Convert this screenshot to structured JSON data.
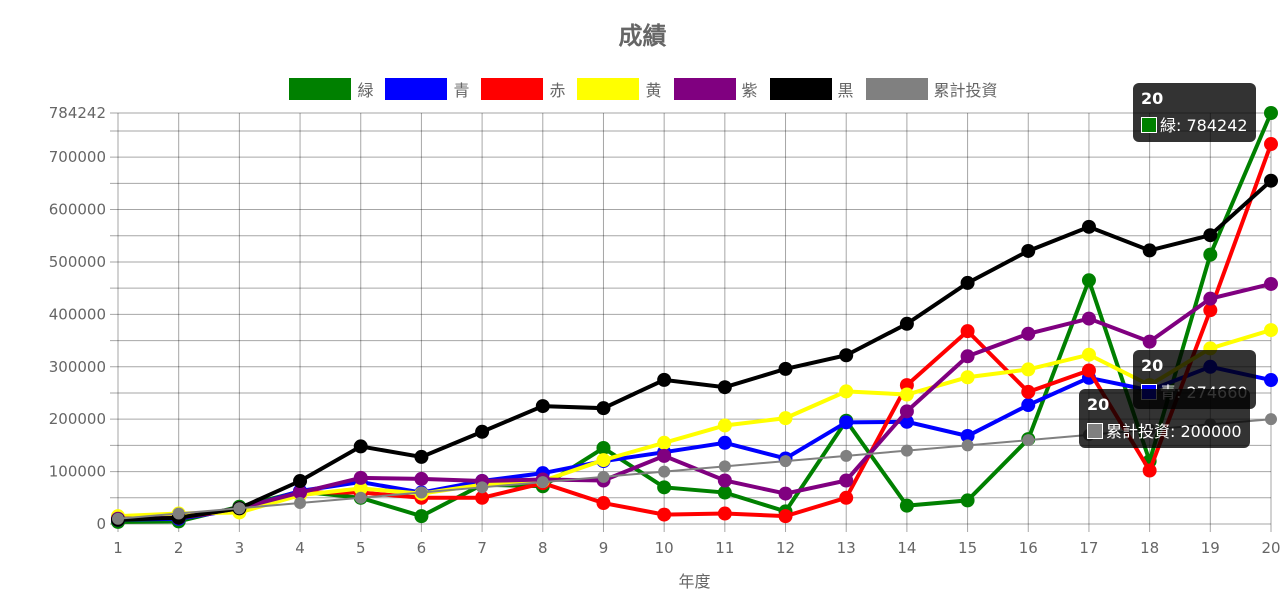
{
  "chart_data": {
    "type": "line",
    "title": "成績",
    "xlabel": "年度",
    "ylabel": "",
    "x": [
      1,
      2,
      3,
      4,
      5,
      6,
      7,
      8,
      9,
      10,
      11,
      12,
      13,
      14,
      15,
      16,
      17,
      18,
      19,
      20
    ],
    "ylim": [
      0,
      784242
    ],
    "yticks": [
      "0",
      "100000",
      "200000",
      "300000",
      "400000",
      "500000",
      "600000",
      "700000",
      "784242"
    ],
    "grid": true,
    "legend_position": "top",
    "series": [
      {
        "name": "緑",
        "color": "#008000",
        "values": [
          4000,
          5000,
          33000,
          62000,
          50000,
          15000,
          75000,
          72000,
          145000,
          70000,
          60000,
          24000,
          197000,
          35000,
          45000,
          162000,
          465000,
          120000,
          514000,
          784242
        ]
      },
      {
        "name": "青",
        "color": "#0000ff",
        "values": [
          8000,
          10000,
          28000,
          63000,
          80000,
          60000,
          82000,
          97000,
          120000,
          137000,
          155000,
          125000,
          194000,
          195000,
          168000,
          227000,
          279000,
          255000,
          300000,
          274660
        ]
      },
      {
        "name": "赤",
        "color": "#ff0000",
        "values": [
          12000,
          12000,
          28000,
          60000,
          60000,
          50000,
          50000,
          78000,
          40000,
          18000,
          20000,
          15000,
          50000,
          265000,
          368000,
          252000,
          293000,
          102000,
          408000,
          725000
        ]
      },
      {
        "name": "黄",
        "color": "#ffff00",
        "values": [
          15000,
          20000,
          22000,
          55000,
          68000,
          58000,
          75000,
          82000,
          122000,
          155000,
          188000,
          202000,
          253000,
          247000,
          280000,
          295000,
          323000,
          265000,
          335000,
          370000
        ]
      },
      {
        "name": "紫",
        "color": "#800080",
        "values": [
          10000,
          12000,
          30000,
          60000,
          88000,
          86000,
          82000,
          85000,
          83000,
          130000,
          83000,
          58000,
          83000,
          215000,
          320000,
          363000,
          392000,
          348000,
          430000,
          458000
        ]
      },
      {
        "name": "黒",
        "color": "#000000",
        "values": [
          8000,
          12000,
          30000,
          82000,
          148000,
          128000,
          176000,
          225000,
          221000,
          275000,
          261000,
          296000,
          322000,
          382000,
          460000,
          521000,
          567000,
          522000,
          551000,
          655000
        ]
      },
      {
        "name": "累計投資",
        "color": "#808080",
        "values": [
          10000,
          20000,
          30000,
          40000,
          50000,
          60000,
          70000,
          80000,
          90000,
          100000,
          110000,
          120000,
          130000,
          140000,
          150000,
          160000,
          170000,
          180000,
          190000,
          200000
        ]
      }
    ]
  },
  "tooltips": [
    {
      "title": "20",
      "label": "緑: 784242",
      "color": "#008000"
    },
    {
      "title": "20",
      "label": "青: 274660",
      "color": "#0000ff"
    },
    {
      "title": "20",
      "label": "累計投資: 200000",
      "color": "#808080"
    }
  ]
}
